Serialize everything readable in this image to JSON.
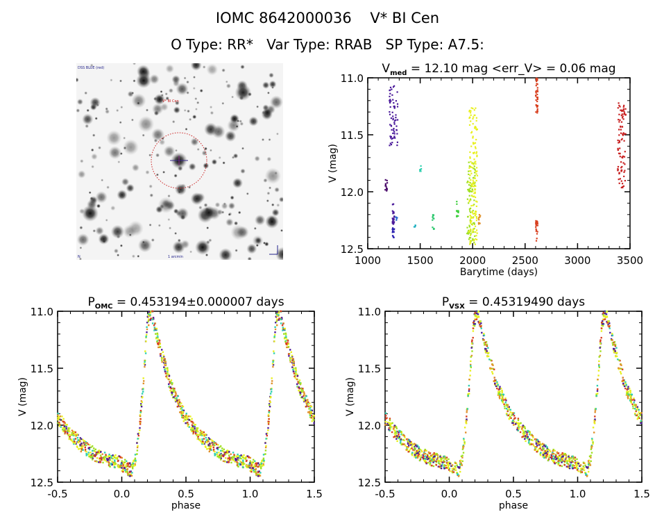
{
  "header": {
    "title_line1": "IOMC 8642000036    V* BI Cen",
    "title_line2": "O Type: RR*   Var Type: RRAB   SP Type: A7.5:"
  },
  "sky_image": {
    "label_top_left": "DSS BLUE (red)",
    "label_target": "V* BI Cen",
    "label_bottom_left": "N",
    "label_bottom_center": "1 arcmin",
    "compass": "N-E",
    "marker_circle_color": "#cc2222",
    "crosshair_color": "#3a2a8a"
  },
  "chart_data": [
    {
      "id": "lightcurve",
      "type": "scatter",
      "title_prefix": "V",
      "title_sub": "med",
      "title_rest": " = 12.10 mag <err_V> = 0.06 mag",
      "xlabel": "Barytime (days)",
      "ylabel": "V (mag)",
      "xlim": [
        1000,
        3500
      ],
      "ylim": [
        12.5,
        11.0
      ],
      "y_inverted": true,
      "xticks": [
        "1000",
        "1500",
        "2000",
        "2500",
        "3000",
        "3500"
      ],
      "xtick_values": [
        1000,
        1500,
        2000,
        2500,
        3000,
        3500
      ],
      "yticks": [
        "11.0",
        "11.5",
        "12.0",
        "12.5"
      ],
      "ytick_values": [
        11.0,
        11.5,
        12.0,
        12.5
      ],
      "groups": [
        {
          "x": 1175,
          "ymin": 11.89,
          "ymax": 12.0,
          "color": "#4a0a6a"
        },
        {
          "x": 1245,
          "ymin": 11.07,
          "ymax": 11.62,
          "color": "#4a1a9a"
        },
        {
          "x": 1245,
          "ymin": 12.1,
          "ymax": 12.3,
          "color": "#4a1a9a"
        },
        {
          "x": 1245,
          "ymin": 12.31,
          "ymax": 12.42,
          "color": "#2a20b0"
        },
        {
          "x": 1275,
          "ymin": 12.22,
          "ymax": 12.26,
          "color": "#2a6ad0"
        },
        {
          "x": 1450,
          "ymin": 12.29,
          "ymax": 12.31,
          "color": "#20b0c0"
        },
        {
          "x": 1505,
          "ymin": 11.77,
          "ymax": 11.82,
          "color": "#30d0b0"
        },
        {
          "x": 1625,
          "ymin": 12.19,
          "ymax": 12.26,
          "color": "#30c870"
        },
        {
          "x": 1625,
          "ymin": 12.3,
          "ymax": 12.33,
          "color": "#30c870"
        },
        {
          "x": 1855,
          "ymin": 12.08,
          "ymax": 12.22,
          "color": "#40d040"
        },
        {
          "x": 1985,
          "ymin": 11.74,
          "ymax": 12.45,
          "color": "#a0e020"
        },
        {
          "x": 2005,
          "ymin": 11.26,
          "ymax": 12.47,
          "color": "#e8f020"
        },
        {
          "x": 2065,
          "ymin": 12.2,
          "ymax": 12.29,
          "color": "#e0902a"
        },
        {
          "x": 2610,
          "ymin": 11.0,
          "ymax": 11.31,
          "color": "#d84020"
        },
        {
          "x": 2610,
          "ymin": 12.25,
          "ymax": 12.43,
          "color": "#d84020"
        },
        {
          "x": 3420,
          "ymin": 11.22,
          "ymax": 11.97,
          "color": "#c82020"
        }
      ]
    },
    {
      "id": "phase_omc",
      "type": "scatter",
      "title_prefix": "P",
      "title_sub": "OMC",
      "title_rest": " = 0.453194±0.000007 days",
      "xlabel": "phase",
      "ylabel": "V (mag)",
      "xlim": [
        -0.5,
        1.5
      ],
      "ylim": [
        12.5,
        11.0
      ],
      "y_inverted": true,
      "xticks": [
        "-0.5",
        "0.0",
        "0.5",
        "1.0",
        "1.5"
      ],
      "xtick_values": [
        -0.5,
        0.0,
        0.5,
        1.0,
        1.5
      ],
      "yticks": [
        "11.0",
        "11.5",
        "12.0",
        "12.5"
      ],
      "ytick_values": [
        11.0,
        11.5,
        12.0,
        12.5
      ],
      "curve_template": [
        [
          0.0,
          12.4
        ],
        [
          0.03,
          12.3
        ],
        [
          0.06,
          12.0
        ],
        [
          0.09,
          11.6
        ],
        [
          0.12,
          11.1
        ],
        [
          0.15,
          11.0
        ],
        [
          0.2,
          11.25
        ],
        [
          0.3,
          11.65
        ],
        [
          0.4,
          11.9
        ],
        [
          0.5,
          12.05
        ],
        [
          0.6,
          12.17
        ],
        [
          0.7,
          12.25
        ],
        [
          0.8,
          12.3
        ],
        [
          0.9,
          12.33
        ],
        [
          0.97,
          12.38
        ],
        [
          1.0,
          12.4
        ]
      ],
      "phase_shift": 0.08,
      "colors": [
        "#e8f020",
        "#a0e020",
        "#d84020",
        "#4a1a9a",
        "#e0902a",
        "#30d0b0"
      ]
    },
    {
      "id": "phase_vsx",
      "type": "scatter",
      "title_prefix": "P",
      "title_sub": "VSX",
      "title_rest": " = 0.45319490 days",
      "xlabel": "phase",
      "ylabel": "V (mag)",
      "xlim": [
        -0.5,
        1.5
      ],
      "ylim": [
        12.5,
        11.0
      ],
      "y_inverted": true,
      "xticks": [
        "-0.5",
        "0.0",
        "0.5",
        "1.0",
        "1.5"
      ],
      "xtick_values": [
        -0.5,
        0.0,
        0.5,
        1.0,
        1.5
      ],
      "yticks": [
        "11.0",
        "11.5",
        "12.0",
        "12.5"
      ],
      "ytick_values": [
        11.0,
        11.5,
        12.0,
        12.5
      ],
      "curve_template": [
        [
          0.0,
          12.4
        ],
        [
          0.03,
          12.3
        ],
        [
          0.06,
          12.0
        ],
        [
          0.09,
          11.6
        ],
        [
          0.12,
          11.1
        ],
        [
          0.15,
          11.0
        ],
        [
          0.2,
          11.25
        ],
        [
          0.3,
          11.65
        ],
        [
          0.4,
          11.9
        ],
        [
          0.5,
          12.05
        ],
        [
          0.6,
          12.17
        ],
        [
          0.7,
          12.25
        ],
        [
          0.8,
          12.3
        ],
        [
          0.9,
          12.33
        ],
        [
          0.97,
          12.38
        ],
        [
          1.0,
          12.4
        ]
      ],
      "phase_shift": 0.07,
      "colors": [
        "#e8f020",
        "#a0e020",
        "#d84020",
        "#4a1a9a",
        "#e0902a",
        "#30d0b0"
      ]
    }
  ]
}
